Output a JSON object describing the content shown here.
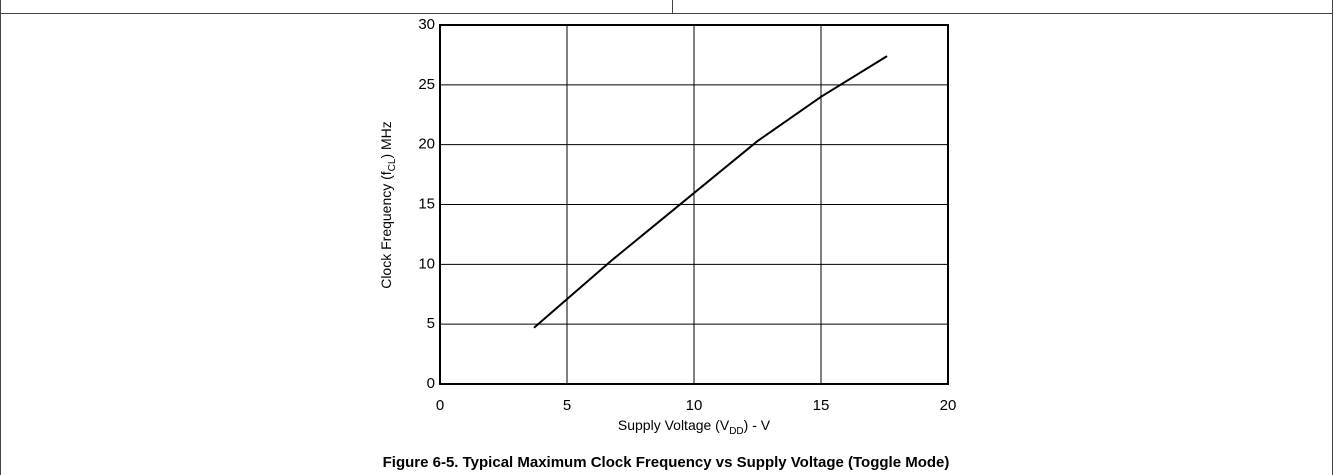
{
  "chart_data": {
    "type": "line",
    "title": "Figure 6-5. Typical Maximum Clock Frequency vs Supply Voltage (Toggle Mode)",
    "xlabel_parts": [
      "Supply Voltage (V",
      "DD",
      ") - V"
    ],
    "ylabel_parts": [
      "Clock Frequency (f",
      "CL",
      ") MHz"
    ],
    "x": [
      3.7,
      6.8,
      12.5,
      15,
      17.6
    ],
    "series": [
      {
        "color": "#000000",
        "values": [
          4.7,
          10.4,
          20.3,
          24,
          27.4
        ]
      }
    ],
    "xlim": [
      0,
      20
    ],
    "xticks": [
      0,
      5,
      10,
      15,
      20
    ],
    "ylim": [
      0,
      30
    ],
    "yticks": [
      0,
      5,
      10,
      15,
      20,
      25,
      30
    ],
    "grid": true
  }
}
